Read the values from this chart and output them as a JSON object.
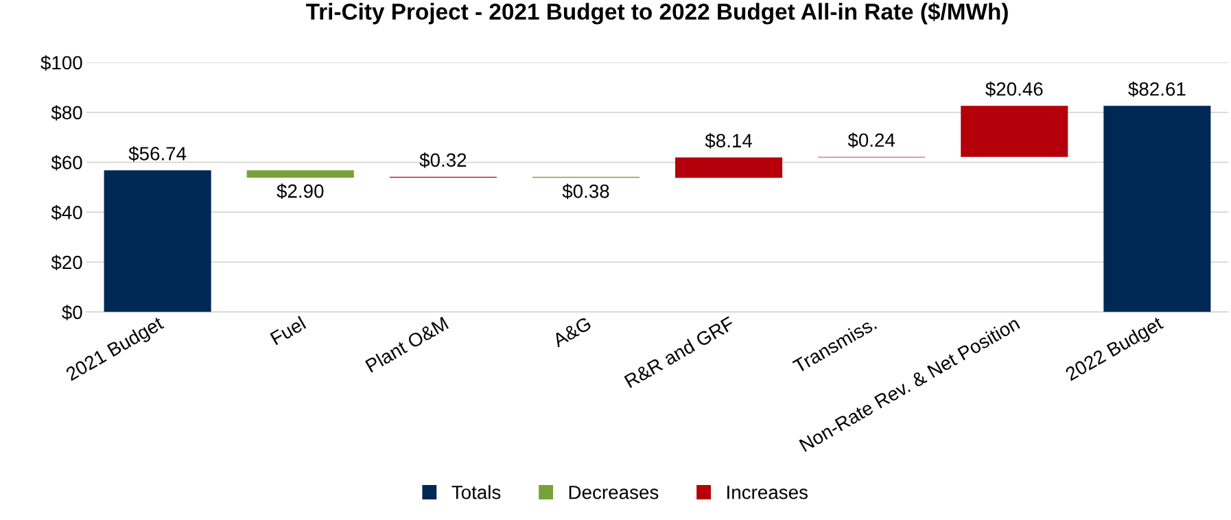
{
  "chart_data": {
    "type": "bar",
    "title": "Tri-City Project - 2021 Budget to 2022 Budget All-in Rate ($/MWh)",
    "categories": [
      "2021 Budget",
      "Fuel",
      "Plant O&M",
      "A&G",
      "R&R and GRF",
      "Transmiss.",
      "Non-Rate Rev. & Net Position",
      "2022 Budget"
    ],
    "series": [
      {
        "name": "Totals",
        "color": "#002855",
        "values": [
          56.74,
          null,
          null,
          null,
          null,
          null,
          null,
          82.61
        ],
        "base": [
          0,
          null,
          null,
          null,
          null,
          null,
          null,
          0
        ],
        "value_labels": [
          "$56.74",
          null,
          null,
          null,
          null,
          null,
          null,
          "$82.61"
        ]
      },
      {
        "name": "Decreases",
        "color": "#77a23b",
        "values": [
          null,
          2.9,
          null,
          0.38,
          null,
          null,
          null,
          null
        ],
        "base": [
          null,
          53.84,
          null,
          53.78,
          null,
          null,
          null,
          null
        ],
        "value_labels": [
          null,
          "$2.90",
          null,
          "$0.38",
          null,
          null,
          null,
          null
        ]
      },
      {
        "name": "Increases",
        "color": "#b5000b",
        "values": [
          null,
          null,
          0.32,
          null,
          8.14,
          0.24,
          20.46,
          null
        ],
        "base": [
          null,
          null,
          53.84,
          null,
          53.78,
          61.92,
          62.16,
          null
        ],
        "value_labels": [
          null,
          null,
          "$0.32",
          null,
          "$8.14",
          "$0.24",
          "$20.46",
          null
        ]
      }
    ],
    "ylim": [
      0,
      100
    ],
    "yticks": [
      {
        "value": 0,
        "label": "$0"
      },
      {
        "value": 20,
        "label": "$20"
      },
      {
        "value": 40,
        "label": "$40"
      },
      {
        "value": 60,
        "label": "$60"
      },
      {
        "value": 80,
        "label": "$80"
      },
      {
        "value": 100,
        "label": "$100"
      }
    ],
    "grid": "y",
    "legend": "bottom"
  }
}
